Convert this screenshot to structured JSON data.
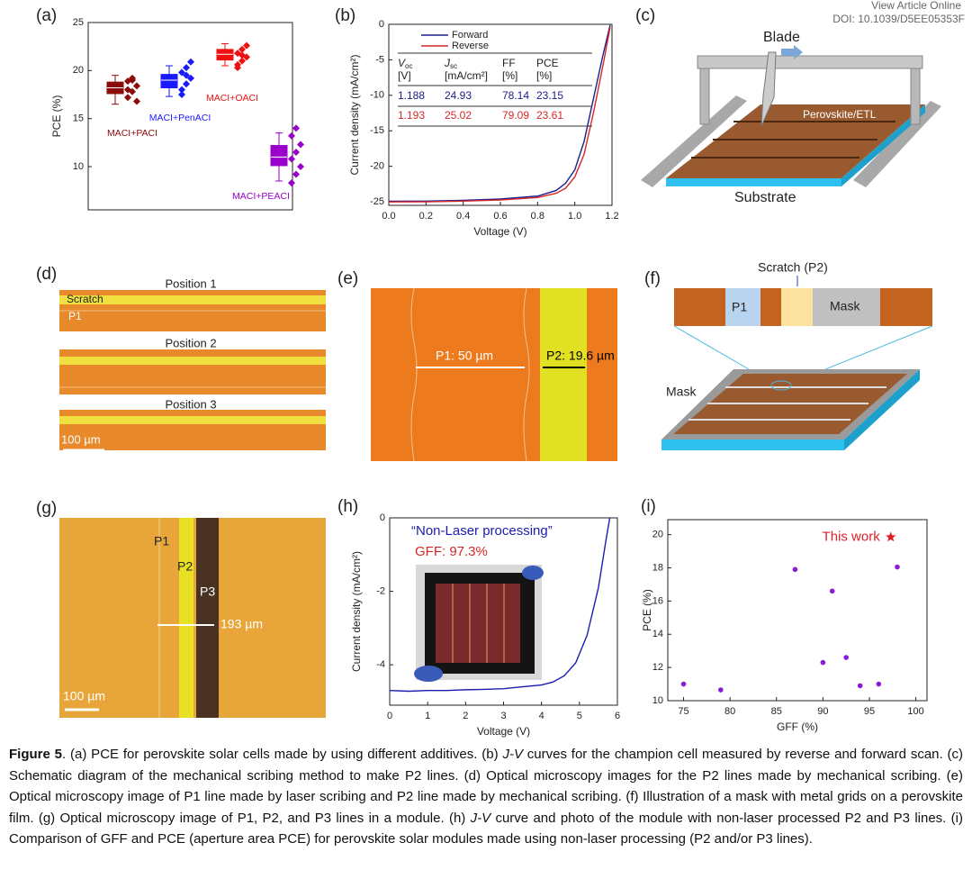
{
  "header": {
    "view": "View Article Online",
    "doi": "DOI: 10.1039/D5EE05353F"
  },
  "panel_labels": [
    "(a)",
    "(b)",
    "(c)",
    "(d)",
    "(e)",
    "(f)",
    "(g)",
    "(h)",
    "(i)"
  ],
  "chart_data": [
    {
      "type": "box",
      "ylabel": "PCE (%)",
      "ylim": [
        5.5,
        25
      ],
      "yticks": [
        10,
        15,
        20,
        25
      ],
      "categories": [
        "MACI+PACI",
        "MACI+PenACI",
        "MACI+OACI",
        "MACI+PEACI"
      ],
      "series": [
        {
          "color": "#8b0a0a",
          "whisker_low": 16.5,
          "q1": 17.6,
          "median": 18.2,
          "q3": 18.8,
          "whisker_high": 19.5,
          "points": [
            17.2,
            17.8,
            18.4,
            18.9,
            19.2,
            16.8,
            18.0,
            19.0
          ]
        },
        {
          "color": "#1a1aff",
          "whisker_low": 17.3,
          "q1": 18.2,
          "median": 19.0,
          "q3": 19.6,
          "whisker_high": 20.5,
          "points": [
            18.0,
            18.6,
            19.2,
            19.8,
            20.3,
            20.9,
            17.5,
            19.5
          ]
        },
        {
          "color": "#ee1111",
          "whisker_low": 20.5,
          "q1": 21.1,
          "median": 21.7,
          "q3": 22.2,
          "whisker_high": 22.8,
          "points": [
            20.6,
            21.0,
            21.4,
            21.8,
            22.2,
            22.6,
            20.3,
            21.6
          ]
        },
        {
          "color": "#9900cc",
          "whisker_low": 8.5,
          "q1": 10.1,
          "median": 11.0,
          "q3": 12.2,
          "whisker_high": 13.5,
          "points": [
            8.3,
            9.2,
            10.0,
            10.8,
            11.5,
            12.3,
            13.2,
            14.0
          ]
        }
      ]
    },
    {
      "type": "line",
      "xlabel": "Voltage (V)",
      "ylabel": "Current density (mA/cm²)",
      "xlim": [
        0,
        1.2
      ],
      "ylim": [
        -25.5,
        0
      ],
      "xticks": [
        {
          "value": 0,
          "label": "0.0"
        },
        {
          "value": 0.2,
          "label": "0.2"
        },
        {
          "value": 0.4,
          "label": "0.4"
        },
        {
          "value": 0.6,
          "label": "0.6"
        },
        {
          "value": 0.8,
          "label": "0.8"
        },
        {
          "value": 1.0,
          "label": "1.0"
        },
        {
          "value": 1.2,
          "label": "1.2"
        }
      ],
      "yticks": [
        0,
        -5,
        -10,
        -15,
        -20,
        -25
      ],
      "x": [
        0,
        0.2,
        0.4,
        0.6,
        0.8,
        0.9,
        0.95,
        1.0,
        1.05,
        1.1,
        1.15,
        1.19
      ],
      "series": [
        {
          "name": "Forward",
          "color": "#1c1c8c",
          "values": [
            -24.93,
            -24.9,
            -24.8,
            -24.6,
            -24.2,
            -23.4,
            -22.4,
            -20.5,
            -16.5,
            -10.5,
            -4.5,
            -0.1
          ]
        },
        {
          "name": "Reverse",
          "color": "#d62728",
          "values": [
            -25.02,
            -25.0,
            -24.9,
            -24.75,
            -24.4,
            -23.8,
            -23.1,
            -21.5,
            -18.3,
            -12.5,
            -6.0,
            -0.4
          ]
        }
      ],
      "table": {
        "header": [
          {
            "main": "V",
            "sub": "oc",
            "unit": "[V]"
          },
          {
            "main": "J",
            "sub": "sc",
            "unit": "[mA/cm²]"
          },
          {
            "main": "FF",
            "unit": "[%]"
          },
          {
            "main": "PCE",
            "unit": "[%]"
          }
        ],
        "rows": [
          [
            "1.188",
            "24.93",
            "78.14",
            "23.15"
          ],
          [
            "1.193",
            "25.02",
            "79.09",
            "23.61"
          ]
        ],
        "row_colors": [
          "#1c1c8c",
          "#d62728"
        ]
      }
    },
    {
      "type": "line",
      "xlabel": "Voltage (V)",
      "ylabel": "Current density (mA/cm²)",
      "xlim": [
        0,
        6
      ],
      "ylim": [
        -5.1,
        0
      ],
      "xticks": [
        0,
        1,
        2,
        3,
        4,
        5,
        6
      ],
      "yticks": [
        0,
        -2,
        -4
      ],
      "annotations": [
        "“Non-Laser processing”",
        "GFF: 97.3%"
      ],
      "x": [
        0,
        0.5,
        1,
        1.5,
        2,
        2.5,
        3,
        3.5,
        4,
        4.3,
        4.6,
        4.9,
        5.2,
        5.5,
        5.7,
        5.8
      ],
      "series": [
        {
          "color": "#1c1cb0",
          "values": [
            -4.7,
            -4.72,
            -4.7,
            -4.7,
            -4.68,
            -4.67,
            -4.65,
            -4.6,
            -4.55,
            -4.47,
            -4.3,
            -3.95,
            -3.2,
            -1.9,
            -0.6,
            0
          ]
        }
      ]
    },
    {
      "type": "scatter",
      "xlabel": "GFF (%)",
      "ylabel": "PCE (%)",
      "xlim": [
        73.3,
        101.2
      ],
      "ylim": [
        10,
        20.9
      ],
      "xticks": [
        75,
        80,
        85,
        90,
        95,
        100
      ],
      "yticks": [
        10,
        12,
        14,
        16,
        18,
        20
      ],
      "color": "#8a1ad8",
      "x": [
        75,
        79,
        87,
        90,
        91,
        92.5,
        94,
        96,
        98
      ],
      "values": [
        11.0,
        10.65,
        17.9,
        12.3,
        16.6,
        12.6,
        10.9,
        11.0,
        18.05
      ],
      "highlight": {
        "label": "This work",
        "x": 97.3,
        "y": 19.85,
        "color": "#e0202a"
      }
    }
  ],
  "images": {
    "c": {
      "blade": "Blade",
      "film": "Perovskite/ETL",
      "substrate": "Substrate"
    },
    "d": {
      "positions": [
        "Position 1",
        "Position 2",
        "Position 3"
      ],
      "scratch": "Scratch",
      "p1": "P1",
      "scale": "100 µm"
    },
    "e": {
      "p1": "P1: 50 µm",
      "p2": "P2: 19.6 µm"
    },
    "f": {
      "scratch": "Scratch (P2)",
      "p1": "P1",
      "mask_top": "Mask",
      "mask": "Mask"
    },
    "g": {
      "p1": "P1",
      "p2": "P2",
      "p3": "P3",
      "width": "193 µm",
      "scale": "100 µm"
    }
  },
  "caption": {
    "label": "Figure 5",
    "segments": [
      ". (a) PCE for perovskite solar cells made by using different additives. (b) ",
      "J-V",
      " curves for the champion cell measured by reverse and forward scan. (c) Schematic diagram of the mechanical scribing method to make P2 lines. (d) Optical microscopy images for the P2 lines made by mechanical scribing. (e) Optical microscopy image of P1 line made by laser scribing and P2 line made by mechanical scribing. (f) Illustration of a mask with metal grids on a perovskite film. (g) Optical microscopy image of P1, P2, and P3 lines in a module. (h) ",
      "J-V",
      " curve and photo of the module with non-laser processed P2 and P3 lines. (i) Comparison of GFF and PCE (aperture area PCE) for perovskite solar modules made using non-laser processing (P2 and/or P3 lines)."
    ]
  }
}
